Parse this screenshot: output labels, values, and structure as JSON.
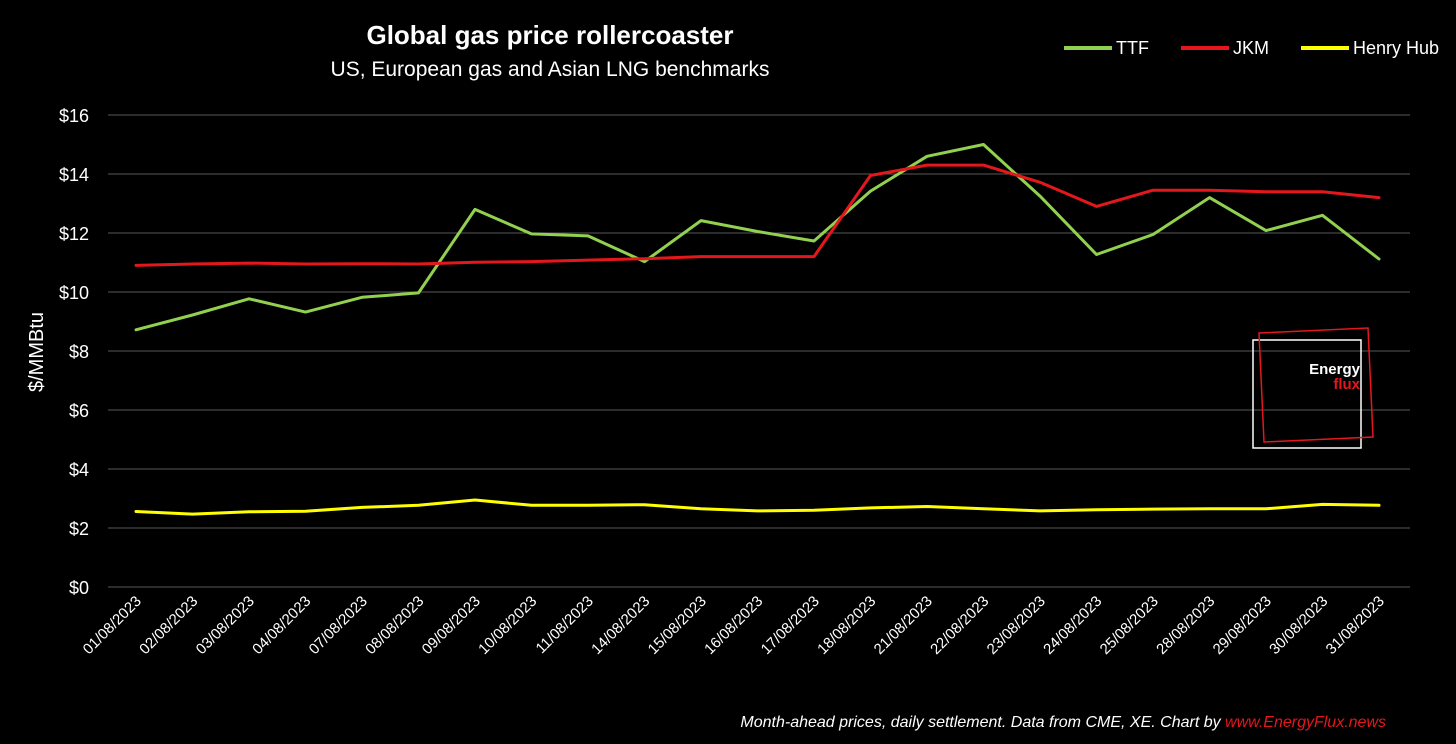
{
  "chart_data": {
    "type": "line",
    "title": "Global gas price rollercoaster",
    "subtitle": "US, European gas and Asian LNG benchmarks",
    "ylabel": "$/MMBtu",
    "xlabel": "",
    "ylim": [
      0,
      16
    ],
    "yticks": [
      0,
      2,
      4,
      6,
      8,
      10,
      12,
      14,
      16
    ],
    "ytick_labels": [
      "$0",
      "$2",
      "$4",
      "$6",
      "$8",
      "$10",
      "$12",
      "$14",
      "$16"
    ],
    "grid": true,
    "legend_position": "top-right",
    "categories": [
      "01/08/2023",
      "02/08/2023",
      "03/08/2023",
      "04/08/2023",
      "07/08/2023",
      "08/08/2023",
      "09/08/2023",
      "10/08/2023",
      "11/08/2023",
      "14/08/2023",
      "15/08/2023",
      "16/08/2023",
      "17/08/2023",
      "18/08/2023",
      "21/08/2023",
      "22/08/2023",
      "23/08/2023",
      "24/08/2023",
      "25/08/2023",
      "28/08/2023",
      "29/08/2023",
      "30/08/2023",
      "31/08/2023"
    ],
    "series": [
      {
        "name": "TTF",
        "color": "#92d050",
        "values": [
          8.72,
          9.22,
          9.77,
          9.32,
          9.82,
          9.97,
          12.8,
          11.97,
          11.9,
          11.03,
          12.42,
          12.05,
          11.73,
          13.42,
          14.6,
          15.0,
          13.25,
          11.27,
          11.95,
          13.2,
          12.08,
          12.6,
          11.12
        ]
      },
      {
        "name": "JKM",
        "color": "#e4171c",
        "values": [
          10.9,
          10.95,
          10.98,
          10.95,
          10.96,
          10.95,
          11.01,
          11.03,
          11.08,
          11.13,
          11.2,
          11.2,
          11.2,
          13.95,
          14.3,
          14.3,
          13.72,
          12.9,
          13.45,
          13.45,
          13.4,
          13.4,
          13.2
        ]
      },
      {
        "name": "Henry Hub",
        "color": "#ffff00",
        "values": [
          2.56,
          2.47,
          2.55,
          2.57,
          2.7,
          2.77,
          2.95,
          2.77,
          2.77,
          2.79,
          2.65,
          2.58,
          2.6,
          2.68,
          2.73,
          2.65,
          2.58,
          2.62,
          2.64,
          2.65,
          2.65,
          2.8,
          2.77
        ]
      }
    ]
  },
  "watermark": {
    "line1": "Energy",
    "line2": "flux",
    "color_accent": "#e4171c"
  },
  "source": {
    "text": "Month-ahead prices, daily settlement. Data from CME, XE. Chart by ",
    "link": "www.EnergyFlux.news"
  },
  "colors": {
    "background": "#000000",
    "gridline": "#595959",
    "text": "#ffffff"
  }
}
